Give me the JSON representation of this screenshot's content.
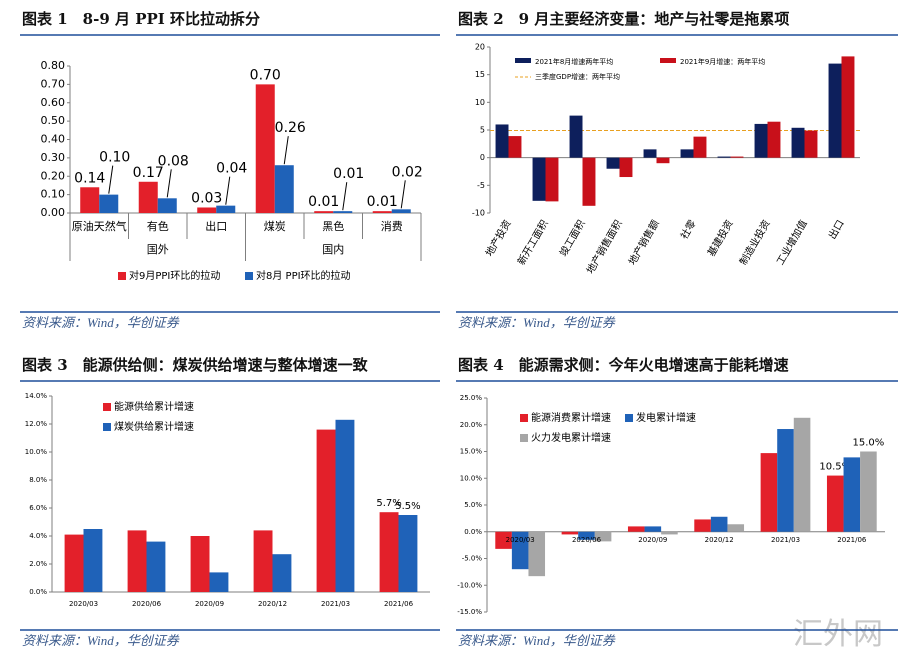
{
  "chart_data": [
    {
      "type": "bar",
      "title": "图表 1　8-9 月 PPI 环比拉动拆分",
      "source": "资料来源：Wind，华创证券",
      "categories": [
        "原油天然气",
        "有色",
        "出口",
        "煤炭",
        "黑色",
        "消费"
      ],
      "groups": [
        {
          "name": "国外",
          "start": 0,
          "end": 2
        },
        {
          "name": "国内",
          "start": 3,
          "end": 5
        }
      ],
      "series": [
        {
          "name": "对9月PPI环比的拉动",
          "color": "#e3202a",
          "values": [
            0.14,
            0.17,
            0.03,
            0.7,
            0.01,
            0.01
          ],
          "value_labels": [
            "0.14",
            "0.17",
            "0.03",
            "0.70",
            "0.01",
            "0.01"
          ]
        },
        {
          "name": "对8月 PPI环比的拉动",
          "color": "#1f62b8",
          "values": [
            0.1,
            0.08,
            0.04,
            0.26,
            0.01,
            0.02
          ],
          "value_labels": [
            "0.10",
            "0.08",
            "0.04",
            "0.26",
            "0.01",
            "0.02"
          ]
        }
      ],
      "ylim": [
        0,
        0.8
      ],
      "yticks": [
        {
          "value": 0,
          "label": "0.00"
        },
        {
          "value": 0.1,
          "label": "0.10"
        },
        {
          "value": 0.2,
          "label": "0.20"
        },
        {
          "value": 0.3,
          "label": "0.30"
        },
        {
          "value": 0.4,
          "label": "0.40"
        },
        {
          "value": 0.5,
          "label": "0.50"
        },
        {
          "value": 0.6,
          "label": "0.60"
        },
        {
          "value": 0.7,
          "label": "0.70"
        },
        {
          "value": 0.8,
          "label": "0.80"
        }
      ],
      "legend": "bottom"
    },
    {
      "type": "bar",
      "title": "图表 2　9 月主要经济变量：地产与社零是拖累项",
      "source": "资料来源：Wind，华创证券",
      "categories": [
        "地产投资",
        "新开工面积",
        "竣工面积",
        "地产销售面积",
        "地产销售额",
        "社零",
        "基建投资",
        "制造业投资",
        "工业增加值",
        "出口"
      ],
      "series": [
        {
          "name": "2021年8月增速两年平均",
          "color": "#0d1f5c",
          "values": [
            6.0,
            -7.8,
            7.6,
            -2.0,
            1.5,
            1.5,
            0.2,
            6.1,
            5.4,
            17.0
          ]
        },
        {
          "name": "2021年9月增速：两年平均",
          "color": "#c8101a",
          "values": [
            3.9,
            -7.9,
            -8.7,
            -3.5,
            -1.0,
            3.8,
            0.2,
            6.5,
            4.9,
            18.3
          ]
        }
      ],
      "reference_lines": [
        {
          "name": "三季度GDP增速：两年平均",
          "value": 4.9,
          "color": "#e8a020"
        }
      ],
      "ylim": [
        -10,
        20
      ],
      "yticks": [
        -10,
        -5,
        0,
        5,
        10,
        15,
        20
      ],
      "legend": "top"
    },
    {
      "type": "bar",
      "title": "图表 3　能源供给侧：煤炭供给增速与整体增速一致",
      "source": "资料来源：Wind，华创证券",
      "categories": [
        "2020/03",
        "2020/06",
        "2020/09",
        "2020/12",
        "2021/03",
        "2021/06"
      ],
      "series": [
        {
          "name": "能源供给累计增速",
          "color": "#e3202a",
          "values": [
            4.1,
            4.4,
            4.0,
            4.4,
            11.6,
            5.7
          ],
          "value_labels": [
            null,
            null,
            null,
            null,
            null,
            "5.7%"
          ]
        },
        {
          "name": "煤炭供给累计增速",
          "color": "#1f62b8",
          "values": [
            4.5,
            3.6,
            1.4,
            2.7,
            12.3,
            5.5
          ],
          "value_labels": [
            null,
            null,
            null,
            null,
            null,
            "5.5%"
          ]
        }
      ],
      "ylim": [
        0,
        14
      ],
      "yticks": [
        {
          "value": 0,
          "label": "0.0%"
        },
        {
          "value": 2,
          "label": "2.0%"
        },
        {
          "value": 4,
          "label": "4.0%"
        },
        {
          "value": 6,
          "label": "6.0%"
        },
        {
          "value": 8,
          "label": "8.0%"
        },
        {
          "value": 10,
          "label": "10.0%"
        },
        {
          "value": 12,
          "label": "12.0%"
        },
        {
          "value": 14,
          "label": "14.0%"
        }
      ],
      "legend": "top-left"
    },
    {
      "type": "bar",
      "title": "图表 4　能源需求侧：今年火电增速高于能耗增速",
      "source": "资料来源：Wind，华创证券",
      "categories": [
        "2020/03",
        "2020/06",
        "2020/09",
        "2020/12",
        "2021/03",
        "2021/06"
      ],
      "series": [
        {
          "name": "能源消费累计增速",
          "color": "#e3202a",
          "values": [
            -3.2,
            -0.5,
            1.0,
            2.3,
            14.7,
            10.5
          ],
          "value_labels": [
            null,
            null,
            null,
            null,
            null,
            "10.5%"
          ]
        },
        {
          "name": "发电累计增速",
          "color": "#1f62b8",
          "values": [
            -7.0,
            -1.5,
            1.0,
            2.8,
            19.2,
            13.9
          ],
          "value_labels": [
            null,
            null,
            null,
            null,
            null,
            null
          ]
        },
        {
          "name": "火力发电累计增速",
          "color": "#a6a6a6",
          "values": [
            -8.3,
            -1.8,
            -0.5,
            1.4,
            21.3,
            15.0
          ],
          "value_labels": [
            null,
            null,
            null,
            null,
            null,
            "15.0%"
          ]
        }
      ],
      "ylim": [
        -15,
        25
      ],
      "yticks": [
        {
          "value": -15,
          "label": "-15.0%"
        },
        {
          "value": -10,
          "label": "-10.0%"
        },
        {
          "value": -5,
          "label": "-5.0%"
        },
        {
          "value": 0,
          "label": "0.0%"
        },
        {
          "value": 5,
          "label": "5.0%"
        },
        {
          "value": 10,
          "label": "10.0%"
        },
        {
          "value": 15,
          "label": "15.0%"
        },
        {
          "value": 20,
          "label": "20.0%"
        },
        {
          "value": 25,
          "label": "25.0%"
        }
      ],
      "legend": "top-left"
    }
  ],
  "watermark": "汇外网"
}
